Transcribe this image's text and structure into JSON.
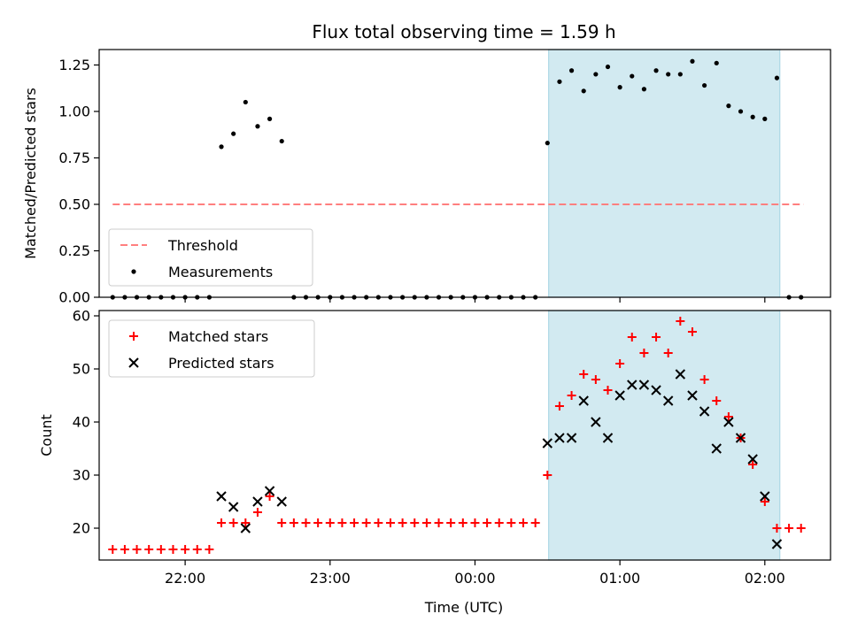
{
  "figure": {
    "title": "Flux total observing time = 1.59 h",
    "xlabel": "Time (UTC)"
  },
  "colors": {
    "threshold": "#ff7f7f",
    "measurements": "#000000",
    "matched": "#ff0000",
    "predicted": "#000000",
    "shade": "#add8e6"
  },
  "chart_data": [
    {
      "type": "scatter",
      "ylabel": "Matched/Predicted stars",
      "ylim": [
        0,
        1.333
      ],
      "xlim": [
        -155.6,
        147.2
      ],
      "x_unit": "minutes relative to 00:00 UTC",
      "yticks": [
        0.0,
        0.25,
        0.5,
        0.75,
        1.0,
        1.25
      ],
      "ytick_labels": [
        "0.00",
        "0.25",
        "0.50",
        "0.75",
        "1.00",
        "1.25"
      ],
      "xticks": [
        -120,
        -60,
        0,
        60,
        120
      ],
      "shaded_region": [
        30.5,
        126.2
      ],
      "threshold": {
        "name": "Threshold",
        "y": 0.5,
        "x_range": [
          -150,
          136
        ]
      },
      "legend": {
        "placement": "lower-left",
        "entries": [
          "Threshold",
          "Measurements"
        ]
      },
      "series": [
        {
          "name": "Measurements",
          "x": [
            -150,
            -145,
            -140,
            -135,
            -130,
            -125,
            -120,
            -115,
            -110,
            -105,
            -100,
            -95,
            -90,
            -85,
            -80,
            -75,
            -70,
            -65,
            -60,
            -55,
            -50,
            -45,
            -40,
            -35,
            -30,
            -25,
            -20,
            -15,
            -10,
            -5,
            0,
            5,
            10,
            15,
            20,
            25,
            30,
            35,
            40,
            45,
            50,
            55,
            60,
            65,
            70,
            75,
            80,
            85,
            90,
            95,
            100,
            105,
            110,
            115,
            120,
            125,
            130,
            135
          ],
          "y": [
            0,
            0,
            0,
            0,
            0,
            0,
            0,
            0,
            0,
            0.81,
            0.88,
            1.05,
            0.92,
            0.96,
            0.84,
            0,
            0,
            0,
            0,
            0,
            0,
            0,
            0,
            0,
            0,
            0,
            0,
            0,
            0,
            0,
            0,
            0,
            0,
            0,
            0,
            0,
            0.83,
            1.16,
            1.22,
            1.11,
            1.2,
            1.24,
            1.13,
            1.19,
            1.12,
            1.22,
            1.2,
            1.2,
            1.27,
            1.14,
            1.26,
            1.03,
            1.0,
            0.97,
            0.96,
            1.18,
            0,
            0
          ]
        }
      ]
    },
    {
      "type": "scatter",
      "ylabel": "Count",
      "ylim": [
        14,
        61
      ],
      "xlim": [
        -155.6,
        147.2
      ],
      "x_unit": "minutes relative to 00:00 UTC",
      "yticks": [
        20,
        30,
        40,
        50,
        60
      ],
      "xticks": [
        -120,
        -60,
        0,
        60,
        120
      ],
      "xtick_labels": [
        "22:00",
        "23:00",
        "00:00",
        "01:00",
        "02:00"
      ],
      "shaded_region": [
        30.5,
        126.2
      ],
      "legend": {
        "placement": "upper-left",
        "entries": [
          "Matched stars",
          "Predicted stars"
        ]
      },
      "series": [
        {
          "name": "Matched stars",
          "marker": "plus",
          "x": [
            -150,
            -145,
            -140,
            -135,
            -130,
            -125,
            -120,
            -115,
            -110,
            -105,
            -100,
            -95,
            -90,
            -85,
            -80,
            -75,
            -70,
            -65,
            -60,
            -55,
            -50,
            -45,
            -40,
            -35,
            -30,
            -25,
            -20,
            -15,
            -10,
            -5,
            0,
            5,
            10,
            15,
            20,
            25,
            30,
            35,
            40,
            45,
            50,
            55,
            60,
            65,
            70,
            75,
            80,
            85,
            90,
            95,
            100,
            105,
            110,
            115,
            120,
            125,
            130,
            135
          ],
          "y": [
            16,
            16,
            16,
            16,
            16,
            16,
            16,
            16,
            16,
            21,
            21,
            21,
            23,
            26,
            21,
            21,
            21,
            21,
            21,
            21,
            21,
            21,
            21,
            21,
            21,
            21,
            21,
            21,
            21,
            21,
            21,
            21,
            21,
            21,
            21,
            21,
            30,
            43,
            45,
            49,
            48,
            46,
            51,
            56,
            53,
            56,
            53,
            59,
            57,
            48,
            44,
            41,
            37,
            32,
            25,
            20,
            20,
            20
          ]
        },
        {
          "name": "Predicted stars",
          "marker": "x",
          "x": [
            -105,
            -100,
            -95,
            -90,
            -85,
            -80,
            30,
            35,
            40,
            45,
            50,
            55,
            60,
            65,
            70,
            75,
            80,
            85,
            90,
            95,
            100,
            105,
            110,
            115,
            120,
            125
          ],
          "y": [
            26,
            24,
            20,
            25,
            27,
            25,
            36,
            37,
            37,
            44,
            40,
            37,
            45,
            47,
            47,
            46,
            44,
            49,
            45,
            42,
            35,
            40,
            37,
            33,
            26,
            17
          ]
        }
      ]
    }
  ]
}
